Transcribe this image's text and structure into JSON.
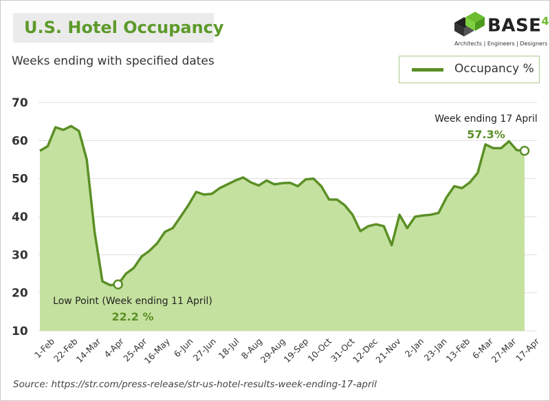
{
  "chart_data": {
    "type": "area",
    "title": "U.S. Hotel Occupancy",
    "subtitle": "Weeks ending with specified dates",
    "ylim": [
      10,
      70
    ],
    "yticks": [
      10,
      20,
      30,
      40,
      50,
      60,
      70
    ],
    "grid": true,
    "legend_position": "top-right",
    "colors": {
      "line": "#5b8f25",
      "fill": "#c4e19f",
      "title": "#5d9a2a"
    },
    "x_labels": [
      "1-Feb",
      "22-Feb",
      "14-Mar",
      "4-Apr",
      "25-Apr",
      "16-May",
      "6-Jun",
      "27-Jun",
      "18-Jul",
      "8-Aug",
      "29-Aug",
      "19-Sep",
      "10-Oct",
      "31-Oct",
      "12-Dec",
      "21-Nov",
      "2-Jan",
      "23-Jan",
      "13-Feb",
      "6-Mar",
      "27-Mar",
      "17-Apr"
    ],
    "series": [
      {
        "name": "Occupancy %",
        "values": [
          57.3,
          58.5,
          63.5,
          62.8,
          63.8,
          62.5,
          55,
          36,
          23,
          22,
          22.2,
          25,
          26.5,
          29.5,
          31,
          33,
          36,
          37,
          40,
          43,
          46.5,
          45.8,
          46,
          47.5,
          48.5,
          49.5,
          50.3,
          49,
          48.2,
          49.5,
          48.5,
          48.8,
          48.9,
          48,
          49.8,
          50,
          48,
          44.5,
          44.5,
          43,
          40.5,
          36.2,
          37.5,
          38,
          37.5,
          32.5,
          40.5,
          37,
          40,
          40.3,
          40.5,
          41,
          45,
          48,
          47.5,
          49,
          51.5,
          59,
          58,
          58,
          59.8,
          57.5,
          57.3
        ]
      }
    ],
    "annotations": [
      {
        "label": "Low Point (Week ending 11 April)",
        "value_text": "22.2 %",
        "x_index": 10,
        "y": 22.2
      },
      {
        "label": "Week ending 17 April",
        "value_text": "57.3%",
        "x_index": 62,
        "y": 57.3
      }
    ]
  },
  "logo": {
    "name": "BASE",
    "superscript": "4",
    "tagline": "Architects | Engineers | Designers"
  },
  "source": "Source: https://str.com/press-release/str-us-hotel-results-week-ending-17-april"
}
